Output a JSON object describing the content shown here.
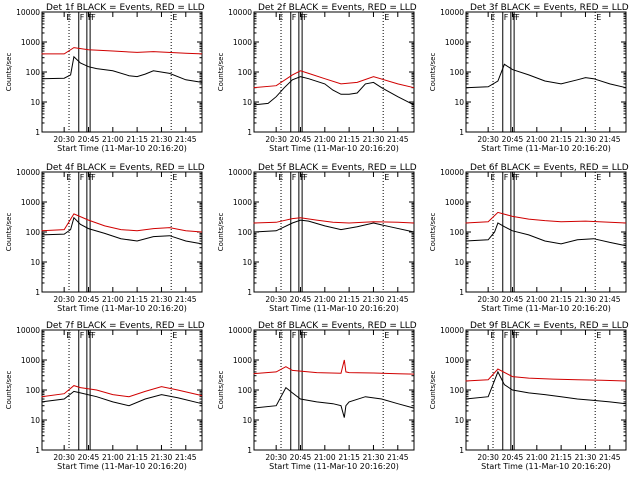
{
  "figure": {
    "title_suffix": "BLACK = Events, RED = LLD",
    "xlabel": "Start Time (11-Mar-10 20:16:20)",
    "ylabel": "Counts/sec",
    "x_tick_labels": [
      "20:30",
      "20:45",
      "21:00",
      "21:15",
      "21:30",
      "21:45"
    ],
    "y_tick_labels": [
      "1",
      "10",
      "100",
      "1000",
      "10000"
    ],
    "marker_labels": [
      "E",
      "F",
      "F",
      "F",
      "E"
    ],
    "colors": {
      "events": "#000000",
      "lld": "#d00000"
    }
  },
  "chart_data": [
    {
      "type": "line",
      "panel": "Det 1f",
      "title": "Det 1f",
      "xlim": [
        "20:16:20",
        "21:55"
      ],
      "ylim": [
        1,
        10000
      ],
      "yscale": "log",
      "xlabel": "Start Time (11-Mar-10 20:16:20)",
      "ylabel": "Counts/sec",
      "series": [
        {
          "name": "BLACK = Events",
          "color": "black",
          "x": [
            "20:16",
            "20:30",
            "20:34",
            "20:36",
            "20:40",
            "20:45",
            "20:50",
            "21:00",
            "21:10",
            "21:15",
            "21:20",
            "21:25",
            "21:35",
            "21:45",
            "21:55"
          ],
          "y": [
            60,
            62,
            80,
            320,
            200,
            150,
            130,
            110,
            75,
            70,
            85,
            110,
            90,
            55,
            45
          ]
        },
        {
          "name": "RED = LLD",
          "color": "red",
          "x": [
            "20:16",
            "20:30",
            "20:36",
            "20:45",
            "21:00",
            "21:15",
            "21:25",
            "21:45",
            "21:55"
          ],
          "y": [
            400,
            400,
            650,
            550,
            500,
            450,
            480,
            420,
            400
          ]
        }
      ]
    },
    {
      "type": "line",
      "panel": "Det 2f",
      "title": "Det 2f",
      "xlim": [
        "20:16:20",
        "21:55"
      ],
      "ylim": [
        1,
        10000
      ],
      "yscale": "log",
      "xlabel": "Start Time (11-Mar-10 20:16:20)",
      "ylabel": "Counts/sec",
      "series": [
        {
          "name": "BLACK = Events",
          "color": "black",
          "x": [
            "20:16",
            "20:25",
            "20:30",
            "20:35",
            "20:40",
            "20:45",
            "20:50",
            "21:00",
            "21:05",
            "21:10",
            "21:15",
            "21:20",
            "21:25",
            "21:30",
            "21:35",
            "21:45",
            "21:55"
          ],
          "y": [
            8,
            9,
            15,
            30,
            55,
            70,
            60,
            40,
            25,
            18,
            18,
            20,
            40,
            45,
            30,
            15,
            8
          ]
        },
        {
          "name": "RED = LLD",
          "color": "red",
          "x": [
            "20:16",
            "20:30",
            "20:40",
            "20:45",
            "20:50",
            "21:00",
            "21:10",
            "21:20",
            "21:30",
            "21:45",
            "21:55"
          ],
          "y": [
            30,
            35,
            80,
            110,
            90,
            60,
            40,
            45,
            70,
            40,
            30
          ]
        }
      ]
    },
    {
      "type": "line",
      "panel": "Det 3f",
      "title": "Det 3f",
      "xlim": [
        "20:16:20",
        "21:55"
      ],
      "ylim": [
        1,
        10000
      ],
      "yscale": "log",
      "xlabel": "Start Time (11-Mar-10 20:16:20)",
      "ylabel": "Counts/sec",
      "series": [
        {
          "name": "BLACK = Events",
          "color": "black",
          "x": [
            "20:16",
            "20:30",
            "20:36",
            "20:40",
            "20:45",
            "20:55",
            "21:05",
            "21:15",
            "21:25",
            "21:30",
            "21:35",
            "21:45",
            "21:55"
          ],
          "y": [
            30,
            32,
            50,
            180,
            120,
            80,
            50,
            40,
            55,
            65,
            60,
            40,
            30
          ]
        }
      ]
    },
    {
      "type": "line",
      "panel": "Det 4f",
      "title": "Det 4f",
      "xlim": [
        "20:16:20",
        "21:55"
      ],
      "ylim": [
        1,
        10000
      ],
      "yscale": "log",
      "xlabel": "Start Time (11-Mar-10 20:16:20)",
      "ylabel": "Counts/sec",
      "series": [
        {
          "name": "BLACK = Events",
          "color": "black",
          "x": [
            "20:16",
            "20:30",
            "20:34",
            "20:36",
            "20:40",
            "20:45",
            "20:55",
            "21:05",
            "21:15",
            "21:25",
            "21:35",
            "21:45",
            "21:55"
          ],
          "y": [
            80,
            85,
            120,
            300,
            180,
            130,
            90,
            60,
            50,
            70,
            75,
            50,
            40
          ]
        },
        {
          "name": "RED = LLD",
          "color": "red",
          "x": [
            "20:16",
            "20:30",
            "20:36",
            "20:45",
            "20:55",
            "21:05",
            "21:15",
            "21:25",
            "21:35",
            "21:45",
            "21:55"
          ],
          "y": [
            110,
            120,
            400,
            250,
            160,
            120,
            110,
            130,
            140,
            110,
            100
          ]
        }
      ]
    },
    {
      "type": "line",
      "panel": "Det 5f",
      "title": "Det 5f",
      "xlim": [
        "20:16:20",
        "21:55"
      ],
      "ylim": [
        1,
        10000
      ],
      "yscale": "log",
      "xlabel": "Start Time (11-Mar-10 20:16:20)",
      "ylabel": "Counts/sec",
      "series": [
        {
          "name": "BLACK = Events",
          "color": "black",
          "x": [
            "20:16",
            "20:30",
            "20:40",
            "20:45",
            "20:50",
            "21:00",
            "21:10",
            "21:20",
            "21:30",
            "21:40",
            "21:55"
          ],
          "y": [
            100,
            110,
            200,
            250,
            230,
            160,
            120,
            150,
            200,
            150,
            100
          ]
        },
        {
          "name": "RED = LLD",
          "color": "red",
          "x": [
            "20:16",
            "20:30",
            "20:40",
            "20:45",
            "20:55",
            "21:05",
            "21:15",
            "21:30",
            "21:45",
            "21:55"
          ],
          "y": [
            200,
            210,
            280,
            300,
            250,
            210,
            200,
            220,
            210,
            200
          ]
        }
      ]
    },
    {
      "type": "line",
      "panel": "Det 6f",
      "title": "Det 6f",
      "xlim": [
        "20:16:20",
        "21:55"
      ],
      "ylim": [
        1,
        10000
      ],
      "yscale": "log",
      "xlabel": "Start Time (11-Mar-10 20:16:20)",
      "ylabel": "Counts/sec",
      "series": [
        {
          "name": "BLACK = Events",
          "color": "black",
          "x": [
            "20:16",
            "20:30",
            "20:34",
            "20:36",
            "20:40",
            "20:45",
            "20:55",
            "21:05",
            "21:15",
            "21:25",
            "21:35",
            "21:45",
            "21:55"
          ],
          "y": [
            50,
            55,
            100,
            200,
            150,
            110,
            80,
            50,
            40,
            55,
            60,
            45,
            35
          ]
        },
        {
          "name": "RED = LLD",
          "color": "red",
          "x": [
            "20:16",
            "20:30",
            "20:36",
            "20:45",
            "20:55",
            "21:05",
            "21:15",
            "21:30",
            "21:45",
            "21:55"
          ],
          "y": [
            200,
            220,
            450,
            330,
            270,
            240,
            220,
            230,
            210,
            200
          ]
        }
      ]
    },
    {
      "type": "line",
      "panel": "Det 7f",
      "title": "Det 7f",
      "xlim": [
        "20:16:20",
        "21:55"
      ],
      "ylim": [
        1,
        10000
      ],
      "yscale": "log",
      "xlabel": "Start Time (11-Mar-10 20:16:20)",
      "ylabel": "Counts/sec",
      "series": [
        {
          "name": "BLACK = Events",
          "color": "black",
          "x": [
            "20:16",
            "20:30",
            "20:36",
            "20:40",
            "20:50",
            "21:00",
            "21:10",
            "21:20",
            "21:30",
            "21:40",
            "21:55"
          ],
          "y": [
            40,
            50,
            90,
            80,
            60,
            40,
            30,
            50,
            70,
            55,
            35
          ]
        },
        {
          "name": "RED = LLD",
          "color": "red",
          "x": [
            "20:16",
            "20:30",
            "20:36",
            "20:40",
            "20:50",
            "21:00",
            "21:10",
            "21:20",
            "21:30",
            "21:40",
            "21:55"
          ],
          "y": [
            60,
            75,
            140,
            120,
            100,
            70,
            60,
            90,
            130,
            100,
            65
          ]
        }
      ]
    },
    {
      "type": "line",
      "panel": "Det 8f",
      "title": "Det 8f",
      "xlim": [
        "20:16:20",
        "21:55"
      ],
      "ylim": [
        1,
        10000
      ],
      "yscale": "log",
      "xlabel": "Start Time (11-Mar-10 20:16:20)",
      "ylabel": "Counts/sec",
      "series": [
        {
          "name": "BLACK = Events",
          "color": "black",
          "x": [
            "20:16",
            "20:30",
            "20:36",
            "20:40",
            "20:45",
            "20:55",
            "21:05",
            "21:10",
            "21:12",
            "21:13",
            "21:15",
            "21:25",
            "21:35",
            "21:45",
            "21:55"
          ],
          "y": [
            25,
            30,
            120,
            80,
            50,
            40,
            35,
            30,
            12,
            30,
            40,
            60,
            50,
            35,
            25
          ]
        },
        {
          "name": "RED = LLD",
          "color": "red",
          "x": [
            "20:16",
            "20:30",
            "20:36",
            "20:40",
            "20:55",
            "21:10",
            "21:12",
            "21:13",
            "21:15",
            "21:30",
            "21:45",
            "21:55"
          ],
          "y": [
            350,
            400,
            600,
            450,
            380,
            360,
            1000,
            400,
            380,
            370,
            350,
            340
          ]
        }
      ]
    },
    {
      "type": "line",
      "panel": "Det 9f",
      "title": "Det 9f",
      "xlim": [
        "20:16:20",
        "21:55"
      ],
      "ylim": [
        1,
        10000
      ],
      "yscale": "log",
      "xlabel": "Start Time (11-Mar-10 20:16:20)",
      "ylabel": "Counts/sec",
      "series": [
        {
          "name": "BLACK = Events",
          "color": "black",
          "x": [
            "20:16",
            "20:30",
            "20:36",
            "20:40",
            "20:45",
            "20:55",
            "21:05",
            "21:15",
            "21:25",
            "21:35",
            "21:45",
            "21:55"
          ],
          "y": [
            50,
            60,
            400,
            150,
            100,
            80,
            70,
            60,
            50,
            45,
            40,
            35
          ]
        },
        {
          "name": "RED = LLD",
          "color": "red",
          "x": [
            "20:16",
            "20:30",
            "20:36",
            "20:45",
            "20:55",
            "21:10",
            "21:25",
            "21:40",
            "21:55"
          ],
          "y": [
            200,
            220,
            500,
            280,
            250,
            230,
            220,
            210,
            200
          ]
        }
      ]
    }
  ]
}
